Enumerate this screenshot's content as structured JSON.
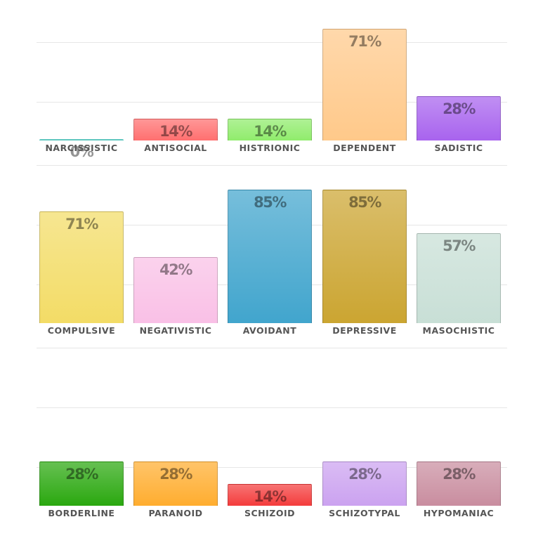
{
  "chart_data": [
    {
      "type": "bar",
      "ylim": [
        0,
        100
      ],
      "categories": [
        "NARCISSISTIC",
        "ANTISOCIAL",
        "HISTRIONIC",
        "DEPENDENT",
        "SADISTIC"
      ],
      "values": [
        0,
        14,
        14,
        71,
        28
      ],
      "value_labels": [
        "0%",
        "14%",
        "14%",
        "71%",
        "28%"
      ],
      "colors": [
        "#5fc7bf",
        "#ff6f6f",
        "#90ec6c",
        "#ffc98a",
        "#a863ee"
      ]
    },
    {
      "type": "bar",
      "ylim": [
        0,
        100
      ],
      "categories": [
        "COMPULSIVE",
        "NEGATIVISTIC",
        "AVOIDANT",
        "DEPRESSIVE",
        "MASOCHISTIC"
      ],
      "values": [
        71,
        42,
        85,
        85,
        57
      ],
      "value_labels": [
        "71%",
        "42%",
        "85%",
        "85%",
        "57%"
      ],
      "colors": [
        "#f3dc66",
        "#f9c0e6",
        "#41a5cd",
        "#cba531",
        "#c8dfd6"
      ]
    },
    {
      "type": "bar",
      "ylim": [
        0,
        100
      ],
      "categories": [
        "BORDERLINE",
        "PARANOID",
        "SCHIZOID",
        "SCHIZOTYPAL",
        "HYPOMANIAC"
      ],
      "values": [
        28,
        28,
        14,
        28,
        28
      ],
      "value_labels": [
        "28%",
        "28%",
        "14%",
        "28%",
        "28%"
      ],
      "colors": [
        "#2aa80f",
        "#ffad2f",
        "#f43c3c",
        "#cba2f0",
        "#c98d9f"
      ]
    }
  ]
}
